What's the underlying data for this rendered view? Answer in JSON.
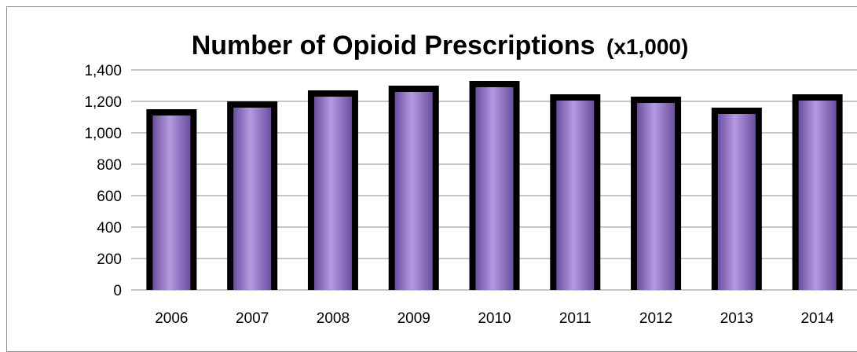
{
  "chart_data": {
    "type": "bar",
    "title": "Number of Opioid Prescriptions",
    "title_suffix": "(x1,000)",
    "xlabel": "",
    "ylabel": "",
    "categories": [
      "2006",
      "2007",
      "2008",
      "2009",
      "2010",
      "2011",
      "2012",
      "2013",
      "2014"
    ],
    "values": [
      1140,
      1190,
      1260,
      1290,
      1320,
      1235,
      1220,
      1150,
      1235
    ],
    "ylim": [
      0,
      1400
    ],
    "yticks": [
      0,
      200,
      400,
      600,
      800,
      1000,
      1200,
      1400
    ],
    "ytick_labels": [
      "0",
      "200",
      "400",
      "600",
      "800",
      "1,000",
      "1,200",
      "1,400"
    ],
    "grid": true,
    "legend": "none",
    "colors": {
      "bar_fill": "#8a6cc0",
      "bar_fill_light": "#b49ae0",
      "bar_fill_dark": "#6a4fa0",
      "bar_border": "#000000",
      "grid": "#8c8c8c"
    }
  }
}
